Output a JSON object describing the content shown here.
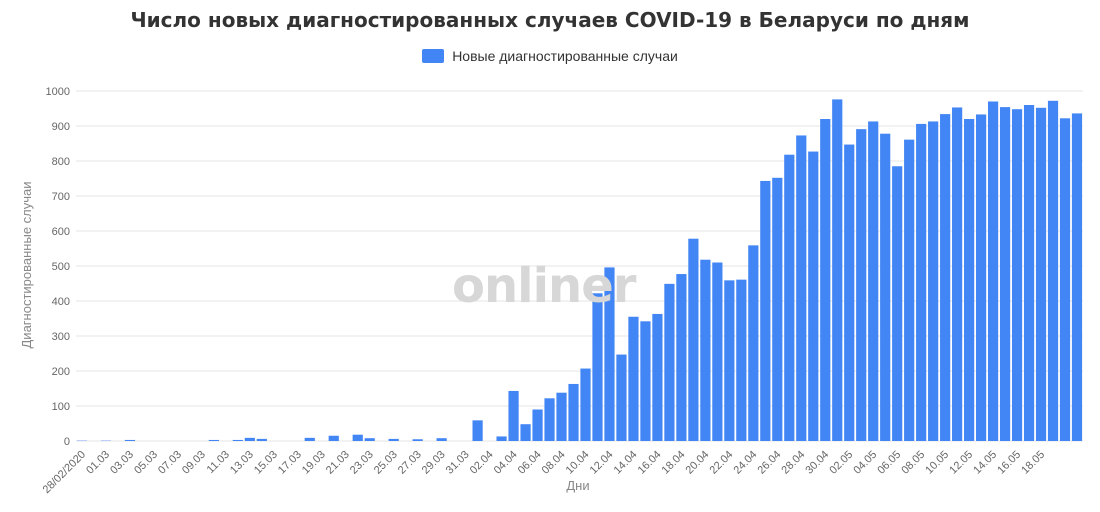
{
  "chart_data": {
    "type": "bar",
    "title": "Число новых диагностированных случаев COVID-19 в Беларуси по дням",
    "xlabel": "Дни",
    "ylabel": "Диагностированные случаи",
    "ylim": [
      0,
      1000
    ],
    "yticks": [
      0,
      100,
      200,
      300,
      400,
      500,
      600,
      700,
      800,
      900,
      1000
    ],
    "grid": true,
    "legend_position": "top-center",
    "series": [
      {
        "name": "Новые диагностированные случаи",
        "color": "#4285f4",
        "values": [
          1,
          0,
          1,
          0,
          3,
          0,
          0,
          0,
          0,
          0,
          0,
          3,
          0,
          3,
          9,
          6,
          0,
          0,
          0,
          9,
          0,
          15,
          0,
          18,
          8,
          0,
          6,
          0,
          5,
          0,
          8,
          0,
          0,
          59,
          0,
          13,
          143,
          48,
          90,
          122,
          138,
          163,
          207,
          422,
          496,
          247,
          355,
          342,
          363,
          449,
          477,
          578,
          518,
          510,
          459,
          461,
          559,
          743,
          752,
          818,
          873,
          827,
          920,
          976,
          847,
          891,
          913,
          878,
          785,
          861,
          906,
          913,
          934,
          953,
          920,
          933,
          970,
          954,
          948,
          960,
          952,
          972,
          922,
          936
        ]
      }
    ],
    "x_tick_labels": [
      "28/02/2020",
      "01.03",
      "03.03",
      "05.03",
      "07.03",
      "09.03",
      "11.03",
      "13.03",
      "15.03",
      "17.03",
      "19.03",
      "21.03",
      "23.03",
      "25.03",
      "27.03",
      "29.03",
      "31.03",
      "02.04",
      "04.04",
      "06.04",
      "08.04",
      "10.04",
      "12.04",
      "14.04",
      "16.04",
      "18.04",
      "20.04",
      "22.04",
      "24.04",
      "26.04",
      "28.04",
      "30.04",
      "02.05",
      "04.05",
      "06.05",
      "08.05",
      "10.05",
      "12.05",
      "14.05",
      "16.05",
      "18.05"
    ]
  },
  "watermark": "onliner",
  "colors": {
    "grid": "#e6e6e6",
    "axis_text": "#666666",
    "title": "#333333"
  }
}
